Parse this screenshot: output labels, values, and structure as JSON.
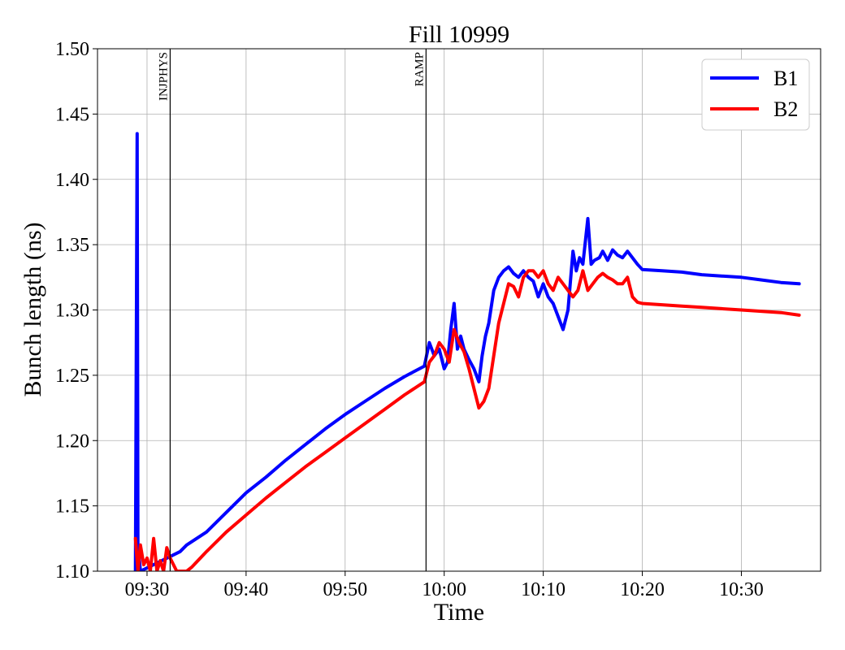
{
  "chart_data": {
    "type": "line",
    "title": "Fill 10999",
    "xlabel": "Time",
    "ylabel": "Bunch length (ns)",
    "xlim": [
      "09:25",
      "10:38"
    ],
    "ylim": [
      1.1,
      1.5
    ],
    "grid": true,
    "legend_position": "top-right",
    "x_tick_labels": [
      "09:30",
      "09:40",
      "09:50",
      "10:00",
      "10:10",
      "10:20",
      "10:30"
    ],
    "y_tick_labels": [
      "1.10",
      "1.15",
      "1.20",
      "1.25",
      "1.30",
      "1.35",
      "1.40",
      "1.45",
      "1.50"
    ],
    "annotations": [
      {
        "label": "INJPHYS",
        "x": "09:32:20"
      },
      {
        "label": "RAMP",
        "x": "09:58:10"
      }
    ],
    "series": [
      {
        "name": "B1",
        "color": "#0000ff",
        "x": [
          "09:28:50",
          "09:29:00",
          "09:29:05",
          "09:29:10",
          "09:29:20",
          "09:33:20",
          "09:34:00",
          "09:36:00",
          "09:38:00",
          "09:40:00",
          "09:42:00",
          "09:44:00",
          "09:46:00",
          "09:48:00",
          "09:50:00",
          "09:52:00",
          "09:54:00",
          "09:56:00",
          "09:58:00",
          "09:58:30",
          "09:59:00",
          "09:59:30",
          "10:00:00",
          "10:00:20",
          "10:00:40",
          "10:01:00",
          "10:01:20",
          "10:01:40",
          "10:02:00",
          "10:02:30",
          "10:03:00",
          "10:03:30",
          "10:03:50",
          "10:04:10",
          "10:04:30",
          "10:05:00",
          "10:05:30",
          "10:06:00",
          "10:06:30",
          "10:07:00",
          "10:07:30",
          "10:08:00",
          "10:08:30",
          "10:09:00",
          "10:09:30",
          "10:10:00",
          "10:10:30",
          "10:11:00",
          "10:11:30",
          "10:12:00",
          "10:12:30",
          "10:13:00",
          "10:13:20",
          "10:13:40",
          "10:14:00",
          "10:14:30",
          "10:14:50",
          "10:15:10",
          "10:15:40",
          "10:16:00",
          "10:16:30",
          "10:17:00",
          "10:17:30",
          "10:18:00",
          "10:18:30",
          "10:19:00",
          "10:19:30",
          "10:20:00",
          "10:22:00",
          "10:24:00",
          "10:26:00",
          "10:28:00",
          "10:30:00",
          "10:32:00",
          "10:34:00",
          "10:35:50"
        ],
        "y": [
          1.1,
          1.435,
          1.1,
          1.115,
          1.1,
          1.115,
          1.12,
          1.13,
          1.145,
          1.16,
          1.172,
          1.185,
          1.197,
          1.209,
          1.22,
          1.23,
          1.24,
          1.249,
          1.257,
          1.275,
          1.265,
          1.27,
          1.255,
          1.26,
          1.285,
          1.305,
          1.27,
          1.28,
          1.27,
          1.262,
          1.255,
          1.245,
          1.265,
          1.28,
          1.29,
          1.315,
          1.325,
          1.33,
          1.333,
          1.328,
          1.325,
          1.33,
          1.325,
          1.322,
          1.31,
          1.32,
          1.31,
          1.305,
          1.295,
          1.285,
          1.3,
          1.345,
          1.33,
          1.34,
          1.335,
          1.37,
          1.335,
          1.338,
          1.34,
          1.345,
          1.338,
          1.346,
          1.342,
          1.34,
          1.345,
          1.34,
          1.335,
          1.331,
          1.33,
          1.329,
          1.327,
          1.326,
          1.325,
          1.323,
          1.321,
          1.32
        ]
      },
      {
        "name": "B2",
        "color": "#ff0000",
        "x": [
          "09:28:50",
          "09:29:05",
          "09:29:20",
          "09:29:40",
          "09:30:00",
          "09:30:20",
          "09:30:40",
          "09:31:00",
          "09:31:20",
          "09:31:40",
          "09:32:00",
          "09:32:20",
          "09:32:40",
          "09:33:00",
          "09:33:20",
          "09:33:40",
          "09:34:00",
          "09:34:30",
          "09:36:00",
          "09:38:00",
          "09:40:00",
          "09:42:00",
          "09:44:00",
          "09:46:00",
          "09:48:00",
          "09:50:00",
          "09:52:00",
          "09:54:00",
          "09:56:00",
          "09:58:00",
          "09:58:30",
          "09:59:00",
          "09:59:30",
          "10:00:00",
          "10:00:30",
          "10:01:00",
          "10:01:30",
          "10:02:00",
          "10:02:30",
          "10:03:00",
          "10:03:30",
          "10:04:00",
          "10:04:30",
          "10:05:00",
          "10:05:30",
          "10:06:00",
          "10:06:30",
          "10:07:00",
          "10:07:30",
          "10:08:00",
          "10:08:30",
          "10:09:00",
          "10:09:30",
          "10:10:00",
          "10:10:30",
          "10:11:00",
          "10:11:30",
          "10:12:00",
          "10:12:30",
          "10:13:00",
          "10:13:30",
          "10:14:00",
          "10:14:30",
          "10:15:00",
          "10:15:30",
          "10:16:00",
          "10:16:30",
          "10:17:00",
          "10:17:30",
          "10:18:00",
          "10:18:30",
          "10:19:00",
          "10:19:30",
          "10:20:00",
          "10:22:00",
          "10:24:00",
          "10:26:00",
          "10:28:00",
          "10:30:00",
          "10:32:00",
          "10:34:00",
          "10:35:50"
        ],
        "y": [
          1.125,
          1.1,
          1.12,
          1.105,
          1.11,
          1.1,
          1.125,
          1.1,
          1.108,
          1.1,
          1.118,
          1.11,
          1.105,
          1.1,
          1.1,
          1.1,
          1.1,
          1.103,
          1.115,
          1.13,
          1.143,
          1.156,
          1.168,
          1.18,
          1.191,
          1.202,
          1.213,
          1.224,
          1.235,
          1.245,
          1.26,
          1.265,
          1.275,
          1.27,
          1.26,
          1.285,
          1.275,
          1.268,
          1.255,
          1.24,
          1.225,
          1.23,
          1.24,
          1.265,
          1.29,
          1.305,
          1.32,
          1.318,
          1.31,
          1.325,
          1.33,
          1.33,
          1.325,
          1.33,
          1.32,
          1.315,
          1.325,
          1.32,
          1.315,
          1.31,
          1.315,
          1.33,
          1.315,
          1.32,
          1.325,
          1.328,
          1.325,
          1.323,
          1.32,
          1.32,
          1.325,
          1.31,
          1.306,
          1.305,
          1.304,
          1.303,
          1.302,
          1.301,
          1.3,
          1.299,
          1.298,
          1.296
        ]
      }
    ]
  }
}
